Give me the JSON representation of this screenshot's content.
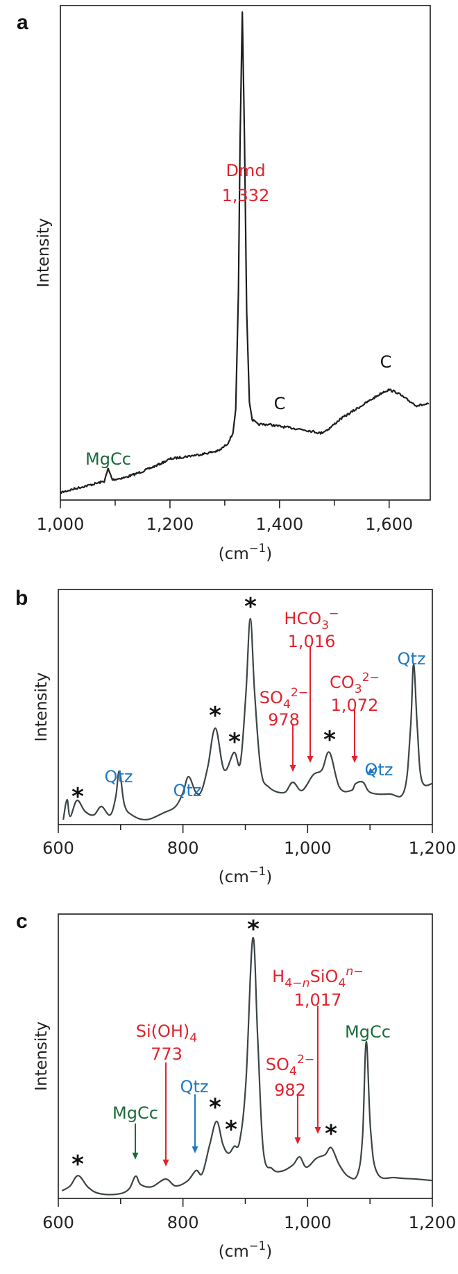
{
  "colors": {
    "assignment_red": "#e2232e",
    "quartz_blue": "#1f78c1",
    "magnesian_calcite_green": "#1b6b3a",
    "trace_a": "#1e1e1e",
    "trace_bc": "#3c4446"
  },
  "chart_data": [
    {
      "panel": "a",
      "type": "line",
      "xlabel": [
        {
          "t": "(cm"
        },
        {
          "sup": "−1"
        },
        {
          "t": ")"
        }
      ],
      "ylabel": "Intensity",
      "xlim": [
        1000,
        1675
      ],
      "ylim": [
        0,
        100
      ],
      "grid": false,
      "ticks": [
        {
          "value": 1000,
          "label": "1,000"
        },
        {
          "value": 1200,
          "label": "1,200"
        },
        {
          "value": 1400,
          "label": "1,400"
        },
        {
          "value": 1600,
          "label": "1,600"
        }
      ],
      "minor_ticks": [
        1100,
        1300,
        1500
      ],
      "series": [
        {
          "x": [
            1000,
            1030,
            1060,
            1080,
            1085,
            1087,
            1090,
            1095,
            1120,
            1150,
            1180,
            1200,
            1230,
            1260,
            1290,
            1305,
            1315,
            1320,
            1325,
            1328,
            1332,
            1336,
            1340,
            1345,
            1350,
            1360,
            1380,
            1400,
            1420,
            1440,
            1460,
            1475,
            1490,
            1510,
            1530,
            1550,
            1570,
            1590,
            1600,
            1615,
            1630,
            1650,
            1672
          ],
          "y": [
            1.5,
            2.4,
            3.2,
            3.8,
            5.5,
            6.3,
            5.5,
            4.1,
            4.6,
            5.8,
            7.2,
            8.3,
            8.8,
            9.3,
            10.0,
            11.4,
            13.5,
            18.4,
            42.1,
            73.1,
            98.7,
            73.1,
            38.0,
            19.8,
            16.3,
            15.3,
            15.3,
            14.9,
            14.6,
            14.3,
            13.9,
            13.5,
            14.4,
            16.3,
            17.7,
            19.1,
            20.5,
            21.9,
            22.3,
            21.7,
            20.5,
            19.1,
            19.4
          ]
        }
      ],
      "annotations": [
        {
          "lines": [
            [
              {
                "t": "Dmd"
              }
            ],
            [
              {
                "t": "1,332"
              }
            ]
          ],
          "color": "#e2232e",
          "x": 1332
        },
        {
          "lines": [
            [
              {
                "t": "C"
              }
            ]
          ],
          "color": "#111111",
          "x": 1400
        },
        {
          "lines": [
            [
              {
                "t": "C"
              }
            ]
          ],
          "color": "#111111",
          "x": 1590
        },
        {
          "lines": [
            [
              {
                "t": "MgCc"
              }
            ]
          ],
          "color": "#1b6b3a",
          "x": 1087
        }
      ]
    },
    {
      "panel": "b",
      "type": "line",
      "xlabel": [
        {
          "t": "(cm"
        },
        {
          "sup": "−1"
        },
        {
          "t": ")"
        }
      ],
      "ylabel": "Intensity",
      "xlim": [
        600,
        1200
      ],
      "ylim": [
        0,
        100
      ],
      "grid": false,
      "ticks": [
        {
          "value": 600,
          "label": "600"
        },
        {
          "value": 800,
          "label": "800"
        },
        {
          "value": 1000,
          "label": "1,000"
        },
        {
          "value": 1200,
          "label": "1,200"
        }
      ],
      "minor_ticks": [
        700,
        900,
        1100
      ],
      "series": [
        {
          "x": [
            608,
            614,
            619,
            630,
            643,
            657,
            669,
            683,
            692,
            698,
            706,
            718,
            741,
            769,
            788,
            800,
            809,
            821,
            830,
            840,
            852,
            866,
            882,
            892,
            901,
            908,
            915,
            925,
            938,
            962,
            976,
            991,
            1009,
            1023,
            1035,
            1051,
            1070,
            1077,
            1089,
            1101,
            1131,
            1155,
            1165,
            1170,
            1176,
            1183,
            1200
          ],
          "y": [
            2.1,
            10.6,
            3.5,
            10.3,
            5.6,
            4.1,
            7.7,
            4.1,
            11.5,
            22.7,
            8.6,
            4.1,
            2.1,
            5.0,
            7.7,
            13.6,
            20.4,
            13.6,
            14.5,
            24.8,
            41.0,
            23.3,
            30.7,
            26.3,
            55.8,
            87.6,
            55.8,
            23.3,
            15.9,
            13.6,
            18.0,
            14.5,
            21.2,
            23.3,
            30.7,
            15.9,
            14.5,
            17.4,
            18.0,
            13.6,
            13.0,
            14.5,
            41.0,
            68.1,
            41.0,
            18.9,
            17.4
          ]
        }
      ],
      "annotations": [
        {
          "lines": [
            [
              {
                "t": "*"
              }
            ]
          ],
          "star": true,
          "x": 630
        },
        {
          "lines": [
            [
              {
                "t": "Qtz"
              }
            ]
          ],
          "color": "#1f78c1",
          "x": 696
        },
        {
          "lines": [
            [
              {
                "t": "Qtz"
              }
            ]
          ],
          "color": "#1f78c1",
          "x": 808
        },
        {
          "lines": [
            [
              {
                "t": "*"
              }
            ]
          ],
          "star": true,
          "x": 851
        },
        {
          "lines": [
            [
              {
                "t": "*"
              }
            ]
          ],
          "star": true,
          "x": 880
        },
        {
          "lines": [
            [
              {
                "t": "*"
              }
            ]
          ],
          "star": true,
          "x": 906
        },
        {
          "lines": [
            [
              {
                "t": "SO"
              },
              {
                "sub": "4"
              },
              {
                "sup": "2−"
              }
            ],
            [
              {
                "t": "978"
              }
            ]
          ],
          "color": "#e2232e",
          "x": 978,
          "arrow": true
        },
        {
          "lines": [
            [
              {
                "t": "HCO"
              },
              {
                "sub": "3"
              },
              {
                "sup": "−"
              }
            ],
            [
              {
                "t": "1,016"
              }
            ]
          ],
          "color": "#e2232e",
          "x": 1016,
          "arrow": true
        },
        {
          "lines": [
            [
              {
                "t": "*"
              }
            ]
          ],
          "star": true,
          "x": 1030
        },
        {
          "lines": [
            [
              {
                "t": "CO"
              },
              {
                "sub": "3"
              },
              {
                "sup": "2−"
              }
            ],
            [
              {
                "t": "1,072"
              }
            ]
          ],
          "color": "#e2232e",
          "x": 1072,
          "arrow": true
        },
        {
          "lines": [
            [
              {
                "t": "Qtz"
              }
            ]
          ],
          "color": "#1f78c1",
          "x": 1085,
          "arrow": true
        },
        {
          "lines": [
            [
              {
                "t": "Qtz"
              }
            ]
          ],
          "color": "#1f78c1",
          "x": 1168
        }
      ]
    },
    {
      "panel": "c",
      "type": "line",
      "xlabel": [
        {
          "t": "(cm"
        },
        {
          "sup": "−1"
        },
        {
          "t": ")"
        }
      ],
      "ylabel": "Intensity",
      "xlim": [
        600,
        1200
      ],
      "ylim": [
        0,
        100
      ],
      "grid": false,
      "ticks": [
        {
          "value": 600,
          "label": "600"
        },
        {
          "value": 800,
          "label": "800"
        },
        {
          "value": 1000,
          "label": "1,000"
        },
        {
          "value": 1200,
          "label": "1,200"
        }
      ],
      "minor_ticks": [
        700,
        900,
        1100
      ],
      "series": [
        {
          "x": [
            606,
            619,
            632,
            648,
            666,
            695,
            713,
            724,
            732,
            750,
            772,
            788,
            807,
            821,
            831,
            843,
            854,
            864,
            873,
            882,
            891,
            901,
            912,
            920,
            929,
            943,
            957,
            976,
            987,
            998,
            1014,
            1028,
            1038,
            1051,
            1066,
            1080,
            1088,
            1094,
            1101,
            1112,
            1141,
            1174,
            1200
          ],
          "y": [
            2.7,
            4.4,
            8.0,
            3.9,
            1.7,
            1.5,
            3.2,
            7.8,
            4.9,
            4.1,
            6.8,
            4.4,
            6.1,
            9.8,
            8.8,
            19.0,
            27.1,
            19.0,
            15.9,
            18.3,
            20.2,
            41.0,
            91.5,
            55.6,
            16.6,
            10.5,
            9.5,
            11.7,
            14.6,
            11.0,
            14.1,
            15.4,
            17.8,
            11.7,
            7.6,
            8.5,
            21.5,
            55.1,
            23.9,
            8.8,
            7.3,
            6.8,
            6.3
          ]
        }
      ],
      "annotations": [
        {
          "lines": [
            [
              {
                "t": "*"
              }
            ]
          ],
          "star": true,
          "x": 632
        },
        {
          "lines": [
            [
              {
                "t": "MgCc"
              }
            ]
          ],
          "color": "#1b6b3a",
          "x": 724,
          "arrow": true
        },
        {
          "lines": [
            [
              {
                "t": "Si(OH)"
              },
              {
                "sub": "4"
              }
            ],
            [
              {
                "t": "773"
              }
            ]
          ],
          "color": "#e2232e",
          "x": 773,
          "arrow": true
        },
        {
          "lines": [
            [
              {
                "t": "Qtz"
              }
            ]
          ],
          "color": "#1f78c1",
          "x": 821,
          "arrow": true
        },
        {
          "lines": [
            [
              {
                "t": "*"
              }
            ]
          ],
          "star": true,
          "x": 852
        },
        {
          "lines": [
            [
              {
                "t": "*"
              }
            ]
          ],
          "star": true,
          "x": 876
        },
        {
          "lines": [
            [
              {
                "t": "*"
              }
            ]
          ],
          "star": true,
          "x": 912
        },
        {
          "lines": [
            [
              {
                "t": "SO"
              },
              {
                "sub": "4"
              },
              {
                "sup": "2−"
              }
            ],
            [
              {
                "t": "982"
              }
            ]
          ],
          "color": "#e2232e",
          "x": 982,
          "arrow": true
        },
        {
          "lines": [
            [
              {
                "t": "H"
              },
              {
                "sub": "4−"
              },
              {
                "subi": "n"
              },
              {
                "t": "SiO"
              },
              {
                "sub": "4"
              },
              {
                "supi": "n"
              },
              {
                "sup": "−"
              }
            ],
            [
              {
                "t": "1,017"
              }
            ]
          ],
          "color": "#e2232e",
          "x": 1017,
          "arrow": true
        },
        {
          "lines": [
            [
              {
                "t": "*"
              }
            ]
          ],
          "star": true,
          "x": 1038
        },
        {
          "lines": [
            [
              {
                "t": "MgCc"
              }
            ]
          ],
          "color": "#1b6b3a",
          "x": 1094
        }
      ]
    }
  ]
}
